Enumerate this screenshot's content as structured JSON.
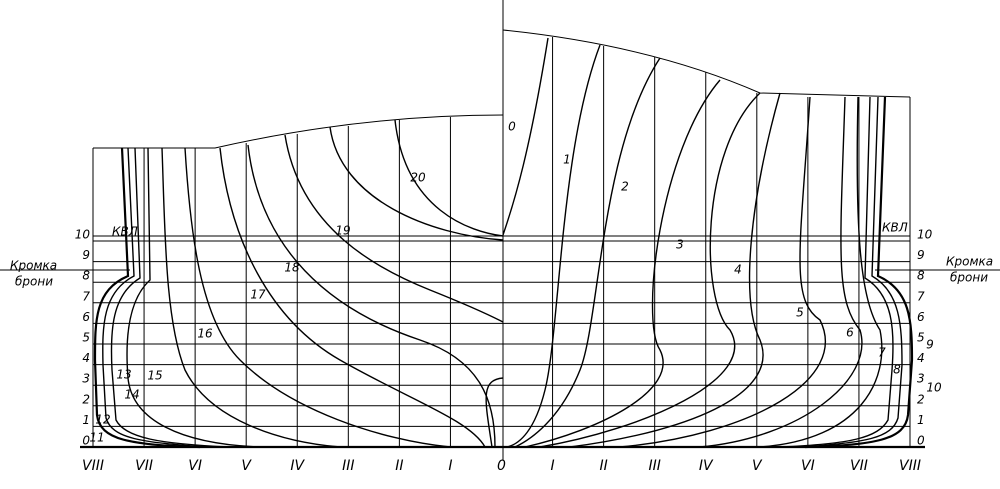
{
  "waterlines": [
    "0",
    "1",
    "2",
    "3",
    "4",
    "5",
    "6",
    "7",
    "8",
    "9",
    "10"
  ],
  "buttocks": [
    "VIII",
    "VII",
    "VI",
    "V",
    "IV",
    "III",
    "II",
    "I",
    "0",
    "I",
    "II",
    "III",
    "IV",
    "V",
    "VI",
    "VII",
    "VIII"
  ],
  "waterline_label": "КВЛ",
  "armor_edge": [
    "Кромка",
    "брони"
  ],
  "stations": [
    "0",
    "1",
    "2",
    "3",
    "4",
    "5",
    "6",
    "7",
    "8",
    "9",
    "10",
    "11",
    "12",
    "13",
    "14",
    "15",
    "16",
    "17",
    "18",
    "19",
    "20"
  ]
}
